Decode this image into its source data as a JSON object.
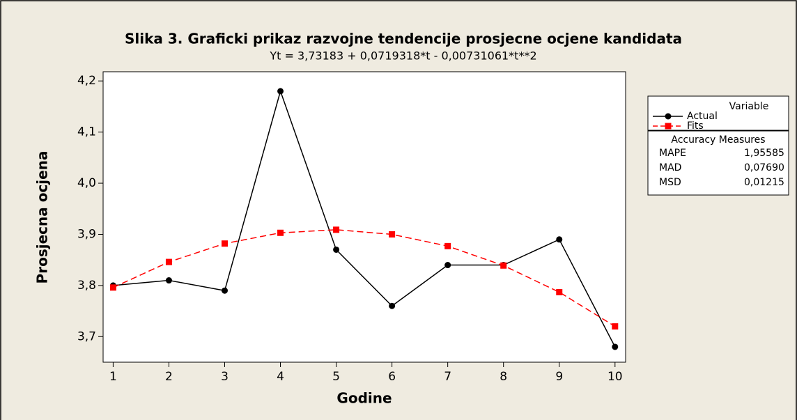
{
  "chart_data": {
    "type": "line",
    "title": "Slika 3. Graficki prikaz razvojne tendencije prosjecne ocjene kandidata",
    "subtitle": "Yt = 3,73183 + 0,0719318*t - 0,00731061*t**2",
    "x_label": "Godine",
    "y_label": "Prosjecna ocjena",
    "x": [
      1,
      2,
      3,
      4,
      5,
      6,
      7,
      8,
      9,
      10
    ],
    "series": [
      {
        "name": "Actual",
        "color": "#000000",
        "marker": "circle",
        "linestyle": "solid",
        "values": [
          3.8,
          3.81,
          3.79,
          4.18,
          3.87,
          3.76,
          3.84,
          3.84,
          3.89,
          3.68
        ]
      },
      {
        "name": "Fits",
        "color": "#ff0000",
        "marker": "square",
        "linestyle": "dashed",
        "values": [
          3.796,
          3.846,
          3.882,
          3.903,
          3.909,
          3.9,
          3.877,
          3.839,
          3.787,
          3.72
        ]
      }
    ],
    "xlim": [
      0.82,
      10.19
    ],
    "xticks": [
      1,
      2,
      3,
      4,
      5,
      6,
      7,
      8,
      9,
      10
    ],
    "ylim": [
      3.65,
      4.218
    ],
    "yticks": [
      {
        "value": 3.7,
        "label": "3,7"
      },
      {
        "value": 3.8,
        "label": "3,8"
      },
      {
        "value": 3.9,
        "label": "3,9"
      },
      {
        "value": 4.0,
        "label": "4,0"
      },
      {
        "value": 4.1,
        "label": "4,1"
      },
      {
        "value": 4.2,
        "label": "4,2"
      }
    ],
    "legend_title": "Variable",
    "legend_position": "right",
    "accuracy": {
      "title": "Accuracy Measures",
      "rows": [
        [
          "MAPE",
          "1,95585"
        ],
        [
          "MAD",
          "0,07690"
        ],
        [
          "MSD",
          "0,01215"
        ]
      ]
    }
  }
}
